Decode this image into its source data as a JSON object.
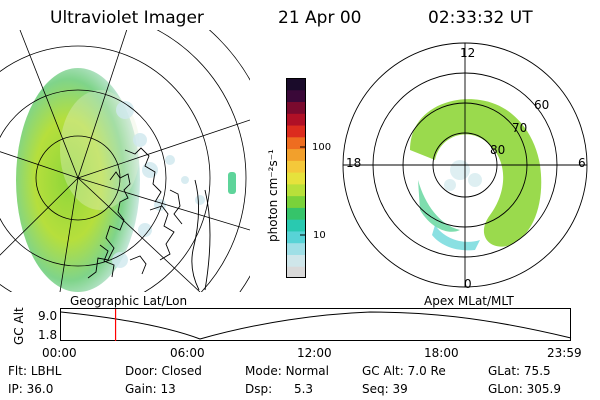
{
  "header": {
    "title": "Ultraviolet Imager",
    "date": "21 Apr 00",
    "time": "02:33:32 UT"
  },
  "colorbar": {
    "unit_label": "photon cm⁻²s⁻¹",
    "tick_100": "100",
    "tick_10": "10",
    "colors": [
      "#d9d9d9",
      "#cfe6ea",
      "#9fdfe6",
      "#58d3d6",
      "#29c9b0",
      "#36c46a",
      "#7ad23a",
      "#b8e03a",
      "#e6e23c",
      "#f4c83a",
      "#f2a02c",
      "#ee6d20",
      "#dc2c1e",
      "#b01026",
      "#7a0a2e",
      "#3a0838",
      "#1a0b2a"
    ]
  },
  "polar_plot": {
    "mlt_labels": {
      "top": "12",
      "left": "18",
      "right": "6",
      "bottom": "0"
    },
    "lat_labels": [
      "60",
      "70",
      "80"
    ]
  },
  "timeline": {
    "y_axis_label": "GC Alt",
    "y_ticks": [
      "9.0",
      "1.8"
    ],
    "left_title": "Geographic Lat/Lon",
    "right_title": "Apex MLat/MLT",
    "x_ticks": [
      "00:00",
      "06:00",
      "12:00",
      "18:00",
      "23:59"
    ],
    "marker_time_fraction": 0.107,
    "marker_color": "#ff0000"
  },
  "info": {
    "filter_label": "Flt:",
    "filter_value": "LBHL",
    "door_label": "Door:",
    "door_value": "Closed",
    "mode_label": "Mode:",
    "mode_value": "Normal",
    "gcalt_label": "GC Alt:",
    "gcalt_value": "7.0 Re",
    "glat_label": "GLat:",
    "glat_value": "75.5",
    "ip_label": "IP:",
    "ip_value": "36.0",
    "gain_label": "Gain:",
    "gain_value": "13",
    "dsp_label": "Dsp:",
    "dsp_value": "5.3",
    "seq_label": "Seq:",
    "seq_value": "39",
    "glon_label": "GLon:",
    "glon_value": "305.9"
  }
}
